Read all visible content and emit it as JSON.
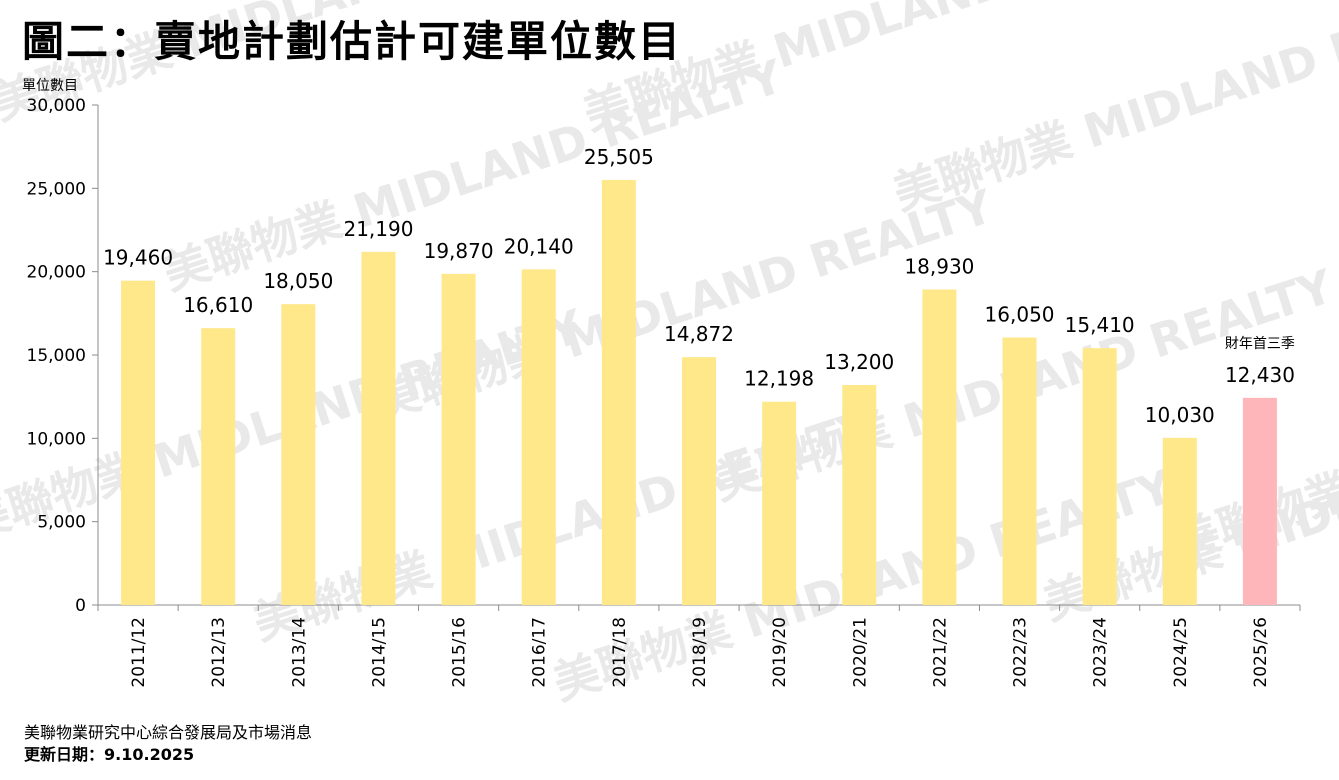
{
  "title": "圖二：賣地計劃估計可建單位數目",
  "footer": {
    "source": "美聯物業研究中心綜合發展局及市場消息",
    "updated_label": "更新日期：",
    "updated_date": "9.10.2025"
  },
  "watermark": "美聯物業 MIDLAND REALTY",
  "chart_data": {
    "type": "bar",
    "title": "圖二：賣地計劃估計可建單位數目",
    "ylabel": "單位數目",
    "xlabel": "",
    "ylim": [
      0,
      30000
    ],
    "yticks": [
      0,
      5000,
      10000,
      15000,
      20000,
      25000,
      30000
    ],
    "ytick_labels": [
      "0",
      "5,000",
      "10,000",
      "15,000",
      "20,000",
      "25,000",
      "30,000"
    ],
    "categories": [
      "2011/12",
      "2012/13",
      "2013/14",
      "2014/15",
      "2015/16",
      "2016/17",
      "2017/18",
      "2018/19",
      "2019/20",
      "2020/21",
      "2021/22",
      "2022/23",
      "2023/24",
      "2024/25",
      "2025/26"
    ],
    "values": [
      19460,
      16610,
      18050,
      21190,
      19870,
      20140,
      25505,
      14872,
      12198,
      13200,
      18930,
      16050,
      15410,
      10030,
      12430
    ],
    "value_labels": [
      "19,460",
      "16,610",
      "18,050",
      "21,190",
      "19,870",
      "20,140",
      "25,505",
      "14,872",
      "12,198",
      "13,200",
      "18,930",
      "16,050",
      "15,410",
      "10,030",
      "12,430"
    ],
    "annotations": [
      {
        "category": "2025/26",
        "text": "財年首三季"
      }
    ],
    "colors": {
      "default": "#FFE88A",
      "highlight": "#FFB6BA",
      "axis": "#8c8c8c"
    },
    "highlight_index": 14,
    "grid": false
  }
}
